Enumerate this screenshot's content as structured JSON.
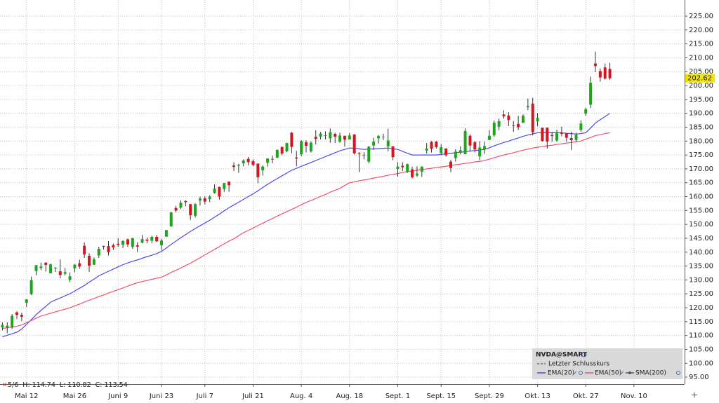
{
  "chart_data": {
    "type": "candlestick",
    "categories": [
      null,
      null,
      null,
      null,
      null,
      "Mai 12",
      null,
      null,
      null,
      null,
      null,
      null,
      null,
      null,
      null,
      "Mai 26",
      null,
      null,
      null,
      null,
      null,
      null,
      null,
      null,
      "Juni 9",
      null,
      null,
      null,
      null,
      null,
      null,
      null,
      null,
      "Juni 23",
      null,
      null,
      null,
      null,
      null,
      null,
      null,
      null,
      "Juli 7",
      null,
      null,
      null,
      null,
      null,
      null,
      null,
      null,
      null,
      "Juli 21",
      null,
      null,
      null,
      null,
      null,
      null,
      null,
      null,
      null,
      "Aug. 4",
      null,
      null,
      null,
      null,
      null,
      null,
      null,
      null,
      null,
      "Aug. 18",
      null,
      null,
      null,
      null,
      null,
      null,
      null,
      null,
      null,
      "Sept. 1",
      null,
      null,
      null,
      null,
      null,
      null,
      null,
      null,
      "Sept. 15",
      null,
      null,
      null,
      null,
      null,
      null,
      null,
      null,
      null,
      "Sept. 29",
      null,
      null,
      null,
      null,
      null,
      null,
      null,
      null,
      null,
      "Okt. 13",
      null,
      null,
      null,
      null,
      null,
      null,
      null,
      null,
      null,
      "Okt. 27",
      null,
      null,
      null,
      null,
      null,
      null,
      null,
      null,
      null,
      "Nov. 10",
      null,
      null,
      null,
      null,
      null,
      null,
      null,
      null,
      null,
      null
    ],
    "open": [
      112.9,
      112.9,
      113.1,
      118.3,
      117.4,
      121.8,
      124.9,
      133.2,
      134.3,
      136.2,
      132.4,
      134.3,
      133.1,
      132.2,
      130.0,
      134.2,
      136.0,
      142.3,
      138.7,
      135.5,
      138.8,
      142.2,
      142.2,
      142.5,
      143.0,
      142.7,
      144.6,
      141.9,
      142.5,
      143.4,
      144.5,
      144.1,
      145.5,
      142.5,
      145.6,
      149.3,
      155.9,
      156.0,
      158.4,
      157.3,
      153.1,
      158.6,
      159.4,
      159.1,
      161.3,
      163.5,
      162.7,
      165.4,
      171.2,
      171.1,
      172.0,
      173.6,
      172.8,
      171.9,
      169.5,
      172.2,
      173.6,
      174.0,
      177.9,
      176.3,
      183.0,
      174.1,
      175.2,
      179.6,
      176.3,
      181.6,
      181.6,
      182.1,
      181.0,
      182.6,
      179.8,
      181.9,
      180.6,
      182.4,
      175.7,
      174.8,
      172.6,
      178.4,
      181.0,
      181.5,
      178.1,
      178.1,
      170.0,
      171.1,
      168.9,
      169.8,
      167.6,
      169.0,
      176.6,
      179.7,
      179.8,
      175.7,
      177.3,
      172.6,
      173.9,
      175.8,
      175.3,
      181.9,
      179.6,
      174.5,
      176.9,
      180.4,
      182.1,
      185.2,
      189.6,
      189.2,
      185.7,
      186.2,
      186.6,
      192.2,
      193.5,
      187.1,
      184.8,
      184.8,
      182.2,
      180.2,
      183.1,
      182.8,
      181.1,
      180.4,
      184.0,
      189.9,
      193.1,
      207.9,
      205.2,
      206.5,
      206.0,
      null,
      null,
      null,
      null,
      null,
      null,
      null,
      null,
      null,
      null,
      null,
      null,
      null,
      null,
      null
    ],
    "high": [
      114.7,
      114.74,
      117.7,
      118.7,
      118.2,
      123.0,
      131.2,
      135.4,
      136.3,
      136.4,
      135.9,
      134.6,
      137.4,
      134.3,
      132.7,
      135.7,
      137.3,
      143.5,
      139.6,
      138.1,
      142.0,
      142.4,
      144.0,
      143.1,
      145.0,
      144.3,
      144.9,
      145.2,
      143.6,
      146.2,
      145.2,
      145.9,
      146.2,
      144.8,
      148.0,
      154.5,
      156.7,
      158.7,
      158.7,
      157.4,
      157.6,
      160.0,
      160.1,
      160.5,
      164.4,
      163.6,
      164.9,
      165.5,
      172.4,
      171.8,
      173.4,
      174.3,
      173.4,
      171.9,
      171.3,
      173.8,
      174.7,
      177.0,
      178.0,
      179.4,
      183.3,
      176.5,
      180.3,
      180.3,
      179.9,
      183.9,
      183.3,
      183.5,
      184.5,
      183.0,
      183.0,
      181.9,
      182.9,
      182.5,
      176.0,
      176.0,
      178.2,
      181.2,
      182.2,
      182.6,
      184.5,
      178.1,
      172.4,
      172.4,
      171.9,
      170.8,
      170.9,
      170.9,
      179.3,
      180.0,
      180.0,
      178.9,
      177.5,
      173.2,
      177.1,
      178.1,
      184.6,
      182.4,
      180.0,
      180.0,
      179.8,
      184.0,
      187.4,
      188.1,
      191.1,
      190.4,
      187.2,
      189.1,
      189.6,
      195.3,
      195.6,
      190.1,
      184.8,
      184.9,
      183.3,
      184.1,
      185.2,
      182.8,
      183.4,
      183.0,
      187.5,
      192.0,
      203.2,
      212.2,
      206.2,
      207.9,
      208.2,
      null,
      null,
      null,
      null,
      null,
      null,
      null,
      null,
      null,
      null,
      null,
      null,
      null,
      null,
      null
    ],
    "low": [
      111.8,
      110.82,
      112.3,
      115.9,
      115.2,
      120.3,
      124.5,
      131.7,
      133.5,
      133.0,
      132.4,
      132.9,
      130.6,
      131.6,
      129.2,
      132.7,
      134.0,
      137.9,
      132.9,
      135.4,
      137.9,
      140.9,
      138.8,
      140.8,
      141.9,
      141.5,
      141.9,
      141.2,
      140.0,
      143.2,
      143.2,
      143.2,
      143.7,
      140.8,
      145.5,
      149.1,
      154.3,
      155.5,
      156.5,
      151.6,
      152.5,
      156.8,
      157.2,
      158.0,
      161.1,
      158.9,
      161.7,
      161.7,
      169.2,
      168.6,
      170.9,
      171.3,
      170.9,
      164.8,
      167.6,
      170.8,
      172.0,
      173.9,
      174.9,
      176.0,
      175.6,
      170.9,
      174.5,
      175.9,
      175.9,
      178.8,
      180.6,
      180.6,
      179.4,
      179.3,
      179.4,
      178.0,
      180.6,
      175.2,
      168.8,
      173.4,
      172.0,
      176.8,
      179.1,
      180.4,
      176.3,
      173.1,
      167.2,
      169.2,
      168.5,
      166.5,
      167.1,
      167.1,
      175.5,
      175.9,
      177.3,
      174.9,
      174.4,
      168.8,
      172.6,
      175.2,
      175.2,
      176.2,
      175.9,
      173.1,
      175.4,
      180.3,
      181.5,
      183.9,
      188.1,
      185.4,
      183.3,
      184.0,
      186.5,
      191.1,
      182.1,
      185.4,
      179.8,
      177.3,
      179.8,
      179.8,
      181.7,
      179.8,
      176.8,
      179.8,
      183.4,
      189.1,
      191.9,
      204.8,
      201.4,
      202.1,
      202.0,
      null,
      null,
      null,
      null,
      null,
      null,
      null,
      null,
      null,
      null,
      null,
      null,
      null,
      null,
      null
    ],
    "close": [
      113.8,
      113.54,
      117.1,
      117.4,
      116.7,
      123.0,
      129.9,
      135.3,
      134.8,
      135.4,
      135.6,
      134.4,
      131.8,
      132.8,
      131.3,
      135.5,
      134.8,
      139.2,
      135.1,
      137.4,
      141.2,
      141.9,
      140.0,
      141.7,
      142.6,
      144.0,
      142.8,
      145.0,
      142.0,
      144.7,
      144.1,
      145.5,
      143.9,
      144.2,
      147.9,
      154.3,
      155.0,
      157.8,
      158.0,
      153.3,
      157.3,
      159.3,
      158.2,
      160.0,
      162.9,
      160.0,
      164.9,
      164.1,
      170.7,
      171.4,
      173.0,
      172.4,
      171.4,
      167.0,
      170.8,
      173.7,
      173.5,
      176.8,
      175.5,
      179.3,
      177.9,
      173.7,
      180.0,
      178.3,
      179.4,
      180.8,
      182.7,
      182.1,
      183.2,
      181.6,
      182.0,
      180.5,
      182.0,
      175.6,
      175.4,
      175.0,
      178.0,
      179.8,
      181.8,
      181.6,
      180.2,
      174.2,
      170.8,
      170.6,
      171.7,
      167.0,
      168.3,
      170.8,
      177.3,
      177.2,
      177.8,
      177.8,
      174.9,
      170.3,
      176.2,
      176.7,
      183.6,
      178.4,
      177.0,
      177.7,
      178.2,
      181.9,
      186.6,
      187.2,
      188.9,
      187.6,
      185.5,
      185.0,
      189.1,
      192.6,
      183.2,
      188.3,
      180.0,
      179.8,
      181.8,
      183.2,
      182.6,
      181.2,
      180.3,
      182.2,
      186.3,
      191.5,
      201.0,
      207.0,
      202.9,
      202.5,
      202.62,
      null,
      null,
      null,
      null,
      null,
      null,
      null,
      null,
      null,
      null,
      null,
      null,
      null,
      null,
      null
    ],
    "up_color": "#1ea51e",
    "down_color": "#d7141e",
    "series": [
      {
        "name": "EMA(20)",
        "color": "#4a4ae8",
        "values": [
          109.5,
          110.1,
          110.6,
          111.2,
          112.3,
          114,
          115.7,
          117.5,
          119,
          120.5,
          122,
          122.8,
          123.5,
          124.3,
          125,
          126,
          127,
          128,
          129.2,
          130.3,
          131.5,
          132.3,
          133.1,
          133.9,
          134.7,
          135.5,
          136.1,
          136.7,
          137.2,
          137.8,
          138.4,
          138.9,
          139.5,
          140.3,
          141.5,
          142.8,
          144,
          145.2,
          146.3,
          147.5,
          148.5,
          149.5,
          150.5,
          151.5,
          152.6,
          153.7,
          154.9,
          156,
          157,
          158,
          159,
          160,
          161,
          162.1,
          163.3,
          164.4,
          165.5,
          166.5,
          167.5,
          168.5,
          169.5,
          170.2,
          170.9,
          171.6,
          172.3,
          173,
          173.7,
          174.4,
          175.1,
          175.8,
          176.5,
          177,
          177.5,
          177.4,
          177.2,
          177,
          177.1,
          177.2,
          177.3,
          177.4,
          177.5,
          177.2,
          177,
          176.3,
          175.6,
          175,
          175,
          175,
          175,
          175,
          175,
          175.2,
          175.4,
          175.6,
          175.8,
          176,
          176.2,
          176.4,
          176.6,
          176.8,
          177,
          177.6,
          178.3,
          178.9,
          179.5,
          180,
          180.6,
          181.1,
          181.7,
          182.2,
          182.6,
          183,
          183,
          183,
          183,
          183,
          183,
          182.8,
          182.7,
          182.5,
          182.7,
          183,
          184.7,
          186.5,
          187.7,
          188.8,
          190,
          null,
          null,
          null,
          null,
          null,
          null,
          null,
          null,
          null,
          null,
          null,
          null,
          null,
          null,
          null
        ]
      },
      {
        "name": "EMA(50)",
        "color": "#f0506e",
        "values": [
          112.5,
          112.8,
          113,
          113.3,
          113.8,
          114.6,
          115.4,
          116.2,
          117,
          117.5,
          118,
          118.5,
          119,
          119.5,
          120,
          120.7,
          121.3,
          122,
          122.7,
          123.3,
          124,
          124.6,
          125.3,
          125.9,
          126.5,
          127.1,
          127.8,
          128.4,
          129,
          129.4,
          129.8,
          130.2,
          130.6,
          131,
          131.8,
          132.7,
          133.5,
          134.3,
          135.2,
          136,
          137,
          138,
          139,
          140,
          141,
          142,
          143,
          144,
          144.8,
          145.9,
          147,
          147.8,
          148.7,
          149.6,
          150.4,
          151.3,
          152.1,
          153,
          153.8,
          154.6,
          155.4,
          156.2,
          157.1,
          157.9,
          158.6,
          159.3,
          160.1,
          160.8,
          161.6,
          162.3,
          163,
          164,
          165,
          165.3,
          165.7,
          166,
          166.3,
          166.7,
          167,
          167.3,
          167.7,
          168,
          168.3,
          168.7,
          169,
          169.2,
          169.5,
          169.7,
          170,
          170.2,
          170.5,
          170.7,
          170.9,
          171.2,
          171.5,
          171.7,
          172,
          172.2,
          172.5,
          172.7,
          173,
          173.5,
          174,
          174.5,
          175,
          175.4,
          175.8,
          176.3,
          176.7,
          177.1,
          177.5,
          177.8,
          178,
          178.3,
          178.5,
          178.8,
          179,
          179.3,
          179.5,
          179.8,
          180,
          180.7,
          181.3,
          182,
          182.3,
          182.7,
          183,
          null,
          null,
          null,
          null,
          null,
          null,
          null,
          null,
          null,
          null,
          null,
          null,
          null,
          null,
          null
        ]
      }
    ],
    "ylim": [
      92.5,
      230.8
    ],
    "yticks": [
      {
        "value": 95,
        "label": "95.00"
      },
      {
        "value": 100,
        "label": "100.00"
      },
      {
        "value": 105,
        "label": "105.00"
      },
      {
        "value": 110,
        "label": "110.00"
      },
      {
        "value": 115,
        "label": "115.00"
      },
      {
        "value": 120,
        "label": "120.00"
      },
      {
        "value": 125,
        "label": "125.00"
      },
      {
        "value": 130,
        "label": "130.00"
      },
      {
        "value": 135,
        "label": "135.00"
      },
      {
        "value": 140,
        "label": "140.00"
      },
      {
        "value": 145,
        "label": "145.00"
      },
      {
        "value": 150,
        "label": "150.00"
      },
      {
        "value": 155,
        "label": "155.00"
      },
      {
        "value": 160,
        "label": "160.00"
      },
      {
        "value": 165,
        "label": "165.00"
      },
      {
        "value": 170,
        "label": "170.00"
      },
      {
        "value": 175,
        "label": "175.00"
      },
      {
        "value": 180,
        "label": "180.00"
      },
      {
        "value": 185,
        "label": "185.00"
      },
      {
        "value": 190,
        "label": "190.00"
      },
      {
        "value": 195,
        "label": "195.00"
      },
      {
        "value": 200,
        "label": "200.00"
      },
      {
        "value": 205,
        "label": "205.00"
      },
      {
        "value": 210,
        "label": "210.00"
      },
      {
        "value": 215,
        "label": "215.00"
      },
      {
        "value": 220,
        "label": "220.00"
      },
      {
        "value": 225,
        "label": "225.00"
      }
    ],
    "grid": true,
    "legend": {
      "title": "NVDA@SMART",
      "last_close": "Letzter Schlusskurs",
      "extra": "SMA(200)"
    },
    "hover": {
      "date": "5/6",
      "labels": [
        "H:",
        "L:",
        "C:"
      ]
    }
  }
}
